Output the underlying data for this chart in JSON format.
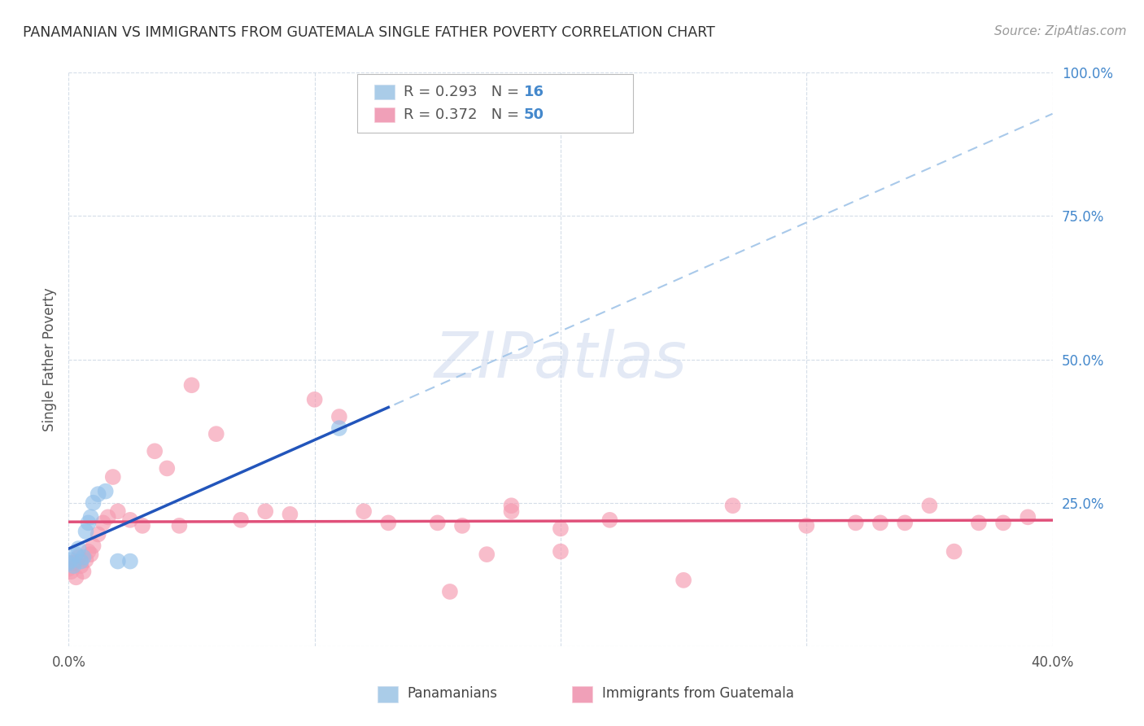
{
  "title": "PANAMANIAN VS IMMIGRANTS FROM GUATEMALA SINGLE FATHER POVERTY CORRELATION CHART",
  "source": "Source: ZipAtlas.com",
  "ylabel": "Single Father Poverty",
  "xlim": [
    0.0,
    0.4
  ],
  "ylim": [
    0.0,
    1.0
  ],
  "panama_color": "#92c0ea",
  "guatemala_color": "#f59ab0",
  "panama_line_color": "#2255bb",
  "guatemala_line_color": "#e0507a",
  "panama_dashed_color": "#a0c4e8",
  "background_color": "#ffffff",
  "grid_color": "#d4dde8",
  "panama_x": [
    0.0,
    0.001,
    0.002,
    0.003,
    0.004,
    0.005,
    0.006,
    0.007,
    0.008,
    0.009,
    0.01,
    0.012,
    0.015,
    0.02,
    0.025,
    0.11
  ],
  "panama_y": [
    0.145,
    0.15,
    0.14,
    0.16,
    0.17,
    0.148,
    0.155,
    0.2,
    0.215,
    0.225,
    0.25,
    0.265,
    0.27,
    0.148,
    0.148,
    0.38
  ],
  "guatemala_x": [
    0.0,
    0.001,
    0.002,
    0.003,
    0.004,
    0.005,
    0.006,
    0.007,
    0.008,
    0.009,
    0.01,
    0.012,
    0.014,
    0.016,
    0.018,
    0.02,
    0.025,
    0.03,
    0.035,
    0.04,
    0.045,
    0.05,
    0.06,
    0.07,
    0.08,
    0.09,
    0.1,
    0.11,
    0.12,
    0.13,
    0.15,
    0.16,
    0.17,
    0.18,
    0.2,
    0.22,
    0.25,
    0.27,
    0.3,
    0.32,
    0.33,
    0.34,
    0.35,
    0.36,
    0.37,
    0.38,
    0.39,
    0.155,
    0.18,
    0.2
  ],
  "guatemala_y": [
    0.135,
    0.13,
    0.145,
    0.12,
    0.155,
    0.14,
    0.13,
    0.15,
    0.165,
    0.16,
    0.175,
    0.195,
    0.215,
    0.225,
    0.295,
    0.235,
    0.22,
    0.21,
    0.34,
    0.31,
    0.21,
    0.455,
    0.37,
    0.22,
    0.235,
    0.23,
    0.43,
    0.4,
    0.235,
    0.215,
    0.215,
    0.21,
    0.16,
    0.235,
    0.205,
    0.22,
    0.115,
    0.245,
    0.21,
    0.215,
    0.215,
    0.215,
    0.245,
    0.165,
    0.215,
    0.215,
    0.225,
    0.095,
    0.245,
    0.165
  ]
}
